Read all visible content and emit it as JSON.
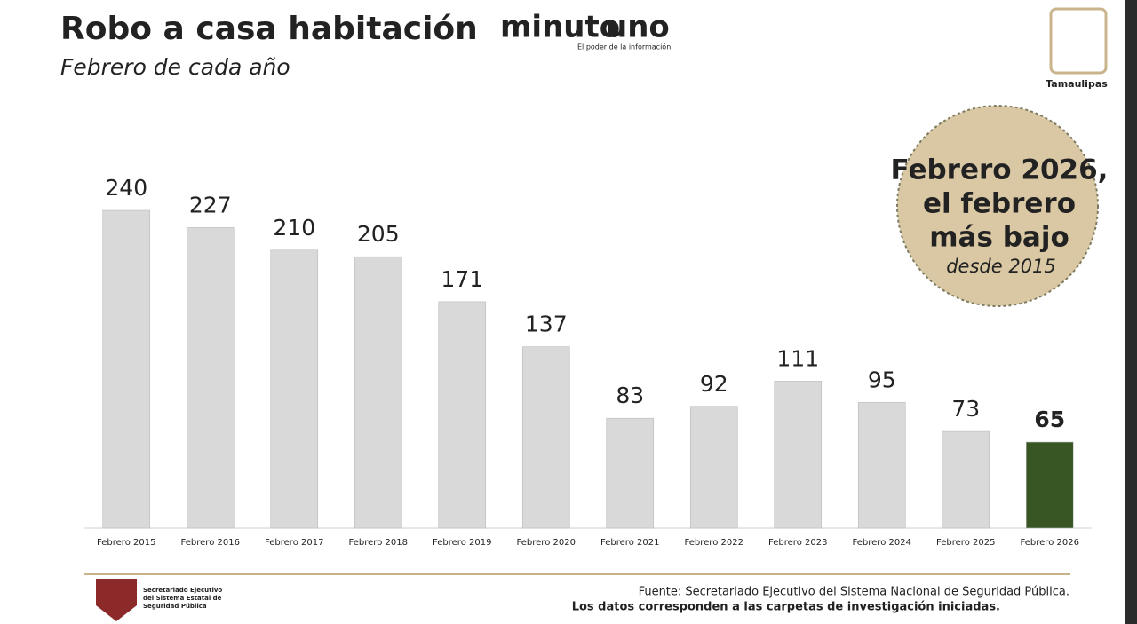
{
  "chart_data": {
    "type": "bar",
    "title": "Robo a casa habitación",
    "subtitle": "Febrero de cada año",
    "categories": [
      "Febrero 2015",
      "Febrero 2016",
      "Febrero 2017",
      "Febrero 2018",
      "Febrero 2019",
      "Febrero 2020",
      "Febrero 2021",
      "Febrero 2022",
      "Febrero 2023",
      "Febrero 2024",
      "Febrero 2025",
      "Febrero 2026"
    ],
    "values": [
      240,
      227,
      210,
      205,
      171,
      137,
      83,
      92,
      111,
      95,
      73,
      65
    ],
    "colors": [
      "#d9d9d9",
      "#d9d9d9",
      "#d9d9d9",
      "#d9d9d9",
      "#d9d9d9",
      "#d9d9d9",
      "#d9d9d9",
      "#d9d9d9",
      "#d9d9d9",
      "#d9d9d9",
      "#d9d9d9",
      "#375623"
    ],
    "annotation": {
      "lines": [
        "Febrero 2026,",
        "el febrero",
        "más bajo"
      ],
      "note": "desde 2015"
    },
    "brand": {
      "name_left": "minuto",
      "name_right": "uno",
      "tagline": "El poder de la información"
    },
    "state_logo": "Tamaulipas",
    "agency_logo": [
      "Secretariado Ejecutivo",
      "del Sistema Estatal de",
      "Seguridad Pública"
    ],
    "source": [
      "Fuente: Secretariado Ejecutivo del Sistema Nacional de Seguridad Pública.",
      "Los datos corresponden a las carpetas de investigación iniciadas."
    ]
  }
}
